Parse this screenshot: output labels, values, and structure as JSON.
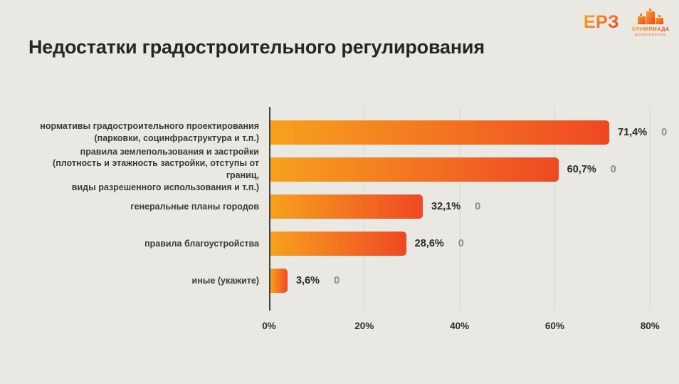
{
  "page": {
    "background": "#E9E8E3"
  },
  "header": {
    "title": "Недостатки градостроительного регулирования",
    "logo_erz": "ЕРЗ",
    "logo_olympiad_line1": "ОЛИМПИАДА",
    "logo_olympiad_line2": "ДЕВЕЛОПЕРОВ"
  },
  "chart_data": {
    "type": "bar",
    "orientation": "horizontal",
    "title": "Недостатки градостроительного регулирования",
    "categories": [
      "нормативы градостроительного проектирования\n(парковки, социнфраструктура и т.п.)",
      "правила землепользования и застройки\n(плотность и этажность застройки, отступы от границ,\nвиды разрешенного использования и т.п.)",
      "генеральные планы городов",
      "правила благоустройства",
      "иные (укажите)"
    ],
    "values": [
      71.4,
      60.7,
      32.1,
      28.6,
      3.6
    ],
    "value_labels": [
      "71,4%",
      "60,7%",
      "32,1%",
      "28,6%",
      "3,6%"
    ],
    "secondary_labels": [
      "0",
      "0",
      "0",
      "0",
      "0"
    ],
    "xlabel": "",
    "ylabel": "",
    "xlim": [
      0,
      84
    ],
    "x_tick_values": [
      0,
      20,
      40,
      60,
      80
    ],
    "x_tick_labels": [
      "0%",
      "20%",
      "40%",
      "60%",
      "80%"
    ],
    "grid": true,
    "legend": "none",
    "bar_gradient": [
      "#F7A11E",
      "#EF4823"
    ],
    "value_label_color": "#2B2A28",
    "secondary_label_color": "#8C8B88"
  }
}
